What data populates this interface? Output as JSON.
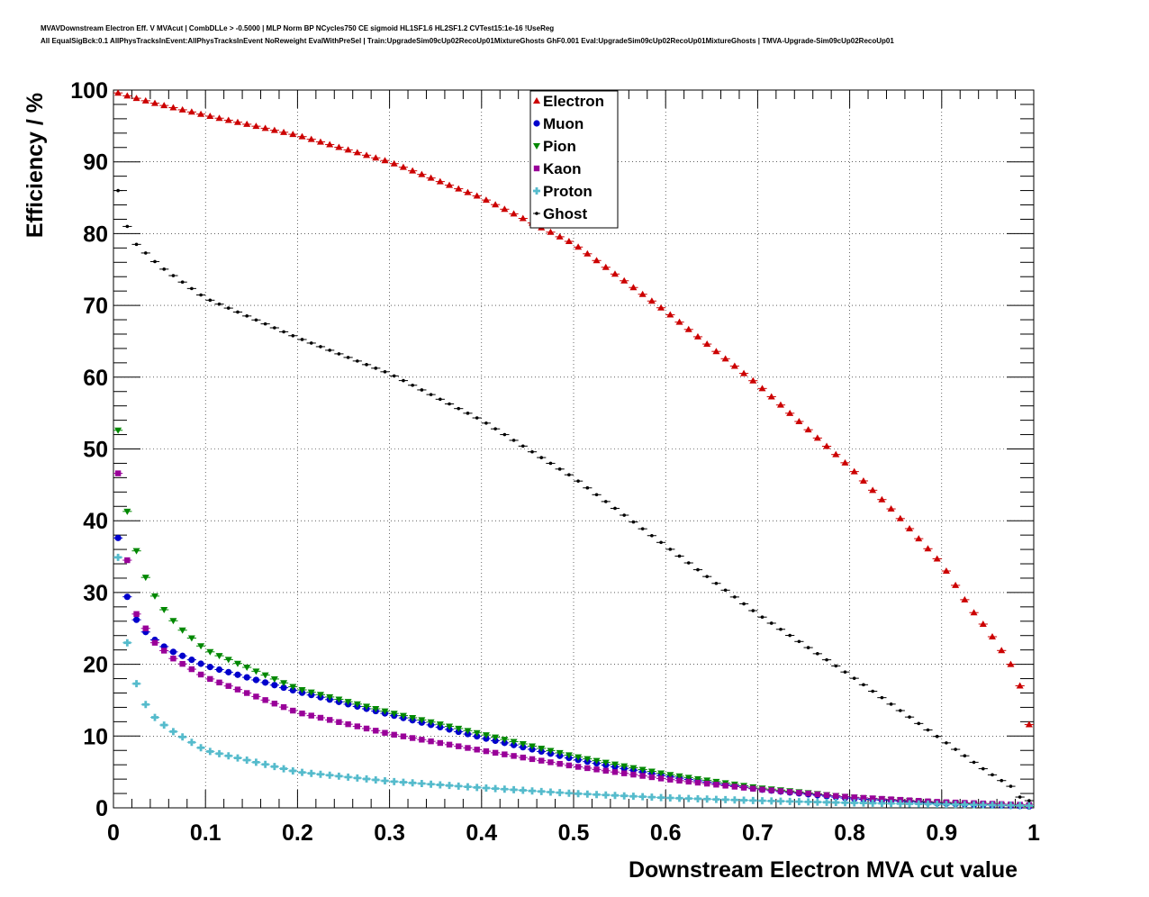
{
  "title_lines": [
    "MVAVDownstream Electron Eff. V MVAcut | CombDLLe > -0.5000 | MLP Norm BP NCycles750 CE sigmoid HL1SF1.6 HL2SF1.2 CVTest15:1e-16 !UseReg",
    "All EqualSigBck:0.1 AllPhysTracksInEvent:AllPhysTracksInEvent NoReweight EvalWithPreSel | Train:UpgradeSim09cUp02RecoUp01MixtureGhosts GhF0.001 Eval:UpgradeSim09cUp02RecoUp01MixtureGhosts | TMVA-Upgrade-Sim09cUp02RecoUp01"
  ],
  "chart_data": {
    "type": "scatter",
    "xlabel": "Downstream Electron MVA cut value",
    "ylabel": "Efficiency / %",
    "xlim": [
      0,
      1
    ],
    "ylim": [
      0,
      100
    ],
    "x_ticks": [
      "0",
      "0.1",
      "0.2",
      "0.3",
      "0.4",
      "0.5",
      "0.6",
      "0.7",
      "0.8",
      "0.9",
      "1"
    ],
    "y_ticks": [
      "0",
      "10",
      "20",
      "30",
      "40",
      "50",
      "60",
      "70",
      "80",
      "90",
      "100"
    ],
    "grid": true,
    "legend_position": "top-center",
    "x_points": {
      "start": 0.005,
      "step": 0.01,
      "count": 100
    },
    "series": [
      {
        "name": "Electron",
        "color": "#cc0000",
        "marker": "triangle-up",
        "anchors": [
          [
            0.005,
            99.6
          ],
          [
            0.015,
            99.2
          ],
          [
            0.05,
            98.0
          ],
          [
            0.1,
            96.5
          ],
          [
            0.2,
            93.7
          ],
          [
            0.3,
            90.0
          ],
          [
            0.4,
            85.0
          ],
          [
            0.5,
            78.6
          ],
          [
            0.6,
            69.2
          ],
          [
            0.7,
            59.0
          ],
          [
            0.8,
            47.5
          ],
          [
            0.85,
            41.0
          ],
          [
            0.9,
            34.0
          ],
          [
            0.93,
            28.0
          ],
          [
            0.95,
            24.8
          ],
          [
            0.975,
            20.0
          ],
          [
            0.985,
            17.0
          ],
          [
            0.995,
            11.6
          ]
        ]
      },
      {
        "name": "Muon",
        "color": "#0000cc",
        "marker": "circle",
        "anchors": [
          [
            0.005,
            37.6
          ],
          [
            0.015,
            29.4
          ],
          [
            0.025,
            26.2
          ],
          [
            0.035,
            24.5
          ],
          [
            0.045,
            23.4
          ],
          [
            0.06,
            22.0
          ],
          [
            0.1,
            19.8
          ],
          [
            0.2,
            16.2
          ],
          [
            0.3,
            13.0
          ],
          [
            0.4,
            9.8
          ],
          [
            0.5,
            6.8
          ],
          [
            0.6,
            4.4
          ],
          [
            0.7,
            2.6
          ],
          [
            0.8,
            1.3
          ],
          [
            0.9,
            0.6
          ],
          [
            0.995,
            0.2
          ]
        ]
      },
      {
        "name": "Pion",
        "color": "#008800",
        "marker": "triangle-down",
        "anchors": [
          [
            0.005,
            52.6
          ],
          [
            0.015,
            41.3
          ],
          [
            0.025,
            35.8
          ],
          [
            0.035,
            32.1
          ],
          [
            0.045,
            29.5
          ],
          [
            0.055,
            27.6
          ],
          [
            0.07,
            25.3
          ],
          [
            0.1,
            22.0
          ],
          [
            0.2,
            16.6
          ],
          [
            0.3,
            13.3
          ],
          [
            0.4,
            10.3
          ],
          [
            0.5,
            7.2
          ],
          [
            0.6,
            4.7
          ],
          [
            0.7,
            2.8
          ],
          [
            0.8,
            1.5
          ],
          [
            0.9,
            0.7
          ],
          [
            0.995,
            0.2
          ]
        ]
      },
      {
        "name": "Kaon",
        "color": "#990099",
        "marker": "square",
        "anchors": [
          [
            0.005,
            46.6
          ],
          [
            0.015,
            34.5
          ],
          [
            0.025,
            27.0
          ],
          [
            0.035,
            25.0
          ],
          [
            0.045,
            23.0
          ],
          [
            0.065,
            20.8
          ],
          [
            0.1,
            18.2
          ],
          [
            0.2,
            13.3
          ],
          [
            0.3,
            10.3
          ],
          [
            0.4,
            8.0
          ],
          [
            0.5,
            5.8
          ],
          [
            0.6,
            4.0
          ],
          [
            0.7,
            2.6
          ],
          [
            0.8,
            1.5
          ],
          [
            0.9,
            0.8
          ],
          [
            0.995,
            0.4
          ]
        ]
      },
      {
        "name": "Proton",
        "color": "#55bbcc",
        "marker": "plus",
        "anchors": [
          [
            0.005,
            34.9
          ],
          [
            0.015,
            23.0
          ],
          [
            0.025,
            17.3
          ],
          [
            0.035,
            14.4
          ],
          [
            0.045,
            12.6
          ],
          [
            0.06,
            11.0
          ],
          [
            0.1,
            8.0
          ],
          [
            0.2,
            5.0
          ],
          [
            0.3,
            3.7
          ],
          [
            0.4,
            2.8
          ],
          [
            0.5,
            2.0
          ],
          [
            0.6,
            1.4
          ],
          [
            0.7,
            1.0
          ],
          [
            0.8,
            0.7
          ],
          [
            0.9,
            0.5
          ],
          [
            0.995,
            0.3
          ]
        ]
      },
      {
        "name": "Ghost",
        "color": "#000000",
        "marker": "small",
        "anchors": [
          [
            0.005,
            86.0
          ],
          [
            0.015,
            81.0
          ],
          [
            0.025,
            78.5
          ],
          [
            0.05,
            75.5
          ],
          [
            0.1,
            71.0
          ],
          [
            0.2,
            65.5
          ],
          [
            0.3,
            60.5
          ],
          [
            0.4,
            54.0
          ],
          [
            0.5,
            46.0
          ],
          [
            0.6,
            36.5
          ],
          [
            0.7,
            27.0
          ],
          [
            0.8,
            18.5
          ],
          [
            0.85,
            14.0
          ],
          [
            0.9,
            9.5
          ],
          [
            0.95,
            5.0
          ],
          [
            0.975,
            3.0
          ],
          [
            0.985,
            1.5
          ],
          [
            0.995,
            1.0
          ]
        ]
      }
    ]
  }
}
